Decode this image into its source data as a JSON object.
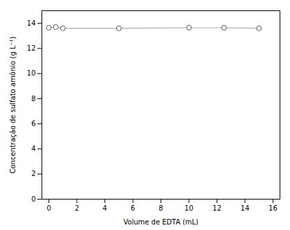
{
  "chart_data": {
    "type": "line",
    "xlabel": "Volume de EDTA (mL)",
    "ylabel": "Concentração de sulfato amônio (g L⁻¹)",
    "x": [
      0,
      0.5,
      1,
      5,
      10,
      12.5,
      15
    ],
    "values": [
      13.65,
      13.7,
      13.6,
      13.6,
      13.65,
      13.65,
      13.6
    ],
    "color": "#aaaaaa",
    "marker": "circle",
    "xlim": [
      -0.5,
      16.5
    ],
    "ylim": [
      0,
      15
    ],
    "xticks": [
      0,
      2,
      4,
      6,
      8,
      10,
      12,
      14,
      16
    ],
    "yticks": [
      0,
      2,
      4,
      6,
      8,
      10,
      12,
      14
    ],
    "grid": false
  }
}
